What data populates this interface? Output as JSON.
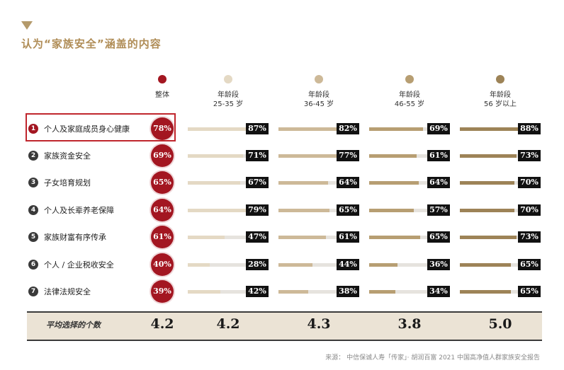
{
  "title": "认为“家族安全”涵盖的内容",
  "chart_data": {
    "type": "bar",
    "title": "认为“家族安全”涵盖的内容",
    "groups": [
      {
        "key": "overall",
        "line1": "整体",
        "line2": "",
        "color": "#a31621"
      },
      {
        "key": "age_25_35",
        "line1": "年龄段",
        "line2": "25-35 岁",
        "color": "#e4d9c4"
      },
      {
        "key": "age_36_45",
        "line1": "年龄段",
        "line2": "36-45 岁",
        "color": "#cdb998"
      },
      {
        "key": "age_46_55",
        "line1": "年龄段",
        "line2": "46-55 岁",
        "color": "#b79e72"
      },
      {
        "key": "age_56_plus",
        "line1": "年龄段",
        "line2": "56 岁以上",
        "color": "#9d8357"
      }
    ],
    "categories": [
      {
        "num": "1",
        "label": "个人及家庭成员身心健康"
      },
      {
        "num": "2",
        "label": "家族资金安全"
      },
      {
        "num": "3",
        "label": "子女培育规划"
      },
      {
        "num": "4",
        "label": "个人及长辈养老保障"
      },
      {
        "num": "5",
        "label": "家族财富有序传承"
      },
      {
        "num": "6",
        "label": "个人 / 企业税收安全"
      },
      {
        "num": "7",
        "label": "法律法规安全"
      }
    ],
    "series": [
      {
        "group": "overall",
        "values": [
          78,
          69,
          65,
          64,
          61,
          40,
          39
        ]
      },
      {
        "group": "age_25_35",
        "values": [
          87,
          71,
          67,
          79,
          47,
          28,
          42
        ]
      },
      {
        "group": "age_36_45",
        "values": [
          82,
          77,
          64,
          65,
          61,
          44,
          38
        ]
      },
      {
        "group": "age_46_55",
        "values": [
          69,
          61,
          64,
          57,
          65,
          36,
          34
        ]
      },
      {
        "group": "age_56_plus",
        "values": [
          88,
          73,
          70,
          70,
          73,
          65,
          65
        ]
      }
    ],
    "value_suffix": "%",
    "ylim": [
      0,
      100
    ],
    "average": {
      "label": "平均选择的个数",
      "values": [
        "4.2",
        "4.2",
        "4.3",
        "3.8",
        "5.0"
      ]
    }
  },
  "source": "来源： 中信保诚人寿「传家」· 胡润百富 2021 中国高净值人群家族安全报告"
}
